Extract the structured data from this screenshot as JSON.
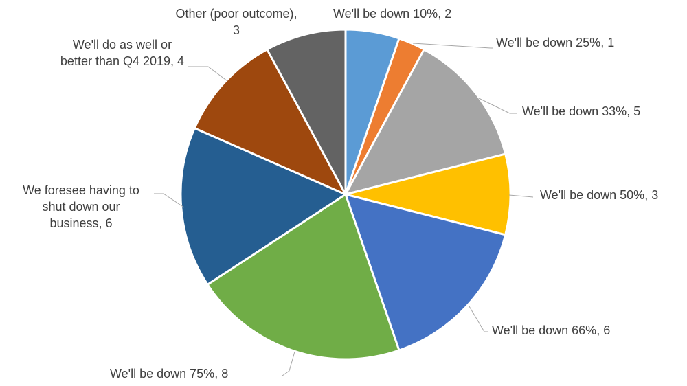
{
  "chart_data": {
    "type": "pie",
    "title": "",
    "slices": [
      {
        "label": "We'll be down 10%, 2",
        "category": "We'll be down 10%",
        "value": 2,
        "color": "#5b9bd5"
      },
      {
        "label": "We'll be down 25%, 1",
        "category": "We'll be down 25%",
        "value": 1,
        "color": "#ed7d31"
      },
      {
        "label": "We'll be down 33%, 5",
        "category": "We'll be down 33%",
        "value": 5,
        "color": "#a5a5a5"
      },
      {
        "label": "We'll be down 50%, 3",
        "category": "We'll be down 50%",
        "value": 3,
        "color": "#ffc000"
      },
      {
        "label": "We'll be down 66%, 6",
        "category": "We'll be down 66%",
        "value": 6,
        "color": "#4472c4"
      },
      {
        "label": "We'll be down 75%, 8",
        "category": "We'll be down 75%",
        "value": 8,
        "color": "#70ad47"
      },
      {
        "label": "We foresee having to shut down our business, 6",
        "category": "We foresee having to shut down our business",
        "value": 6,
        "color": "#255e91"
      },
      {
        "label": "We'll do as well or better than Q4 2019, 4",
        "category": "We'll do as well or better than Q4 2019",
        "value": 4,
        "color": "#9e480e"
      },
      {
        "label": "Other (poor outcome), 3",
        "category": "Other (poor outcome)",
        "value": 3,
        "color": "#636363"
      }
    ]
  }
}
